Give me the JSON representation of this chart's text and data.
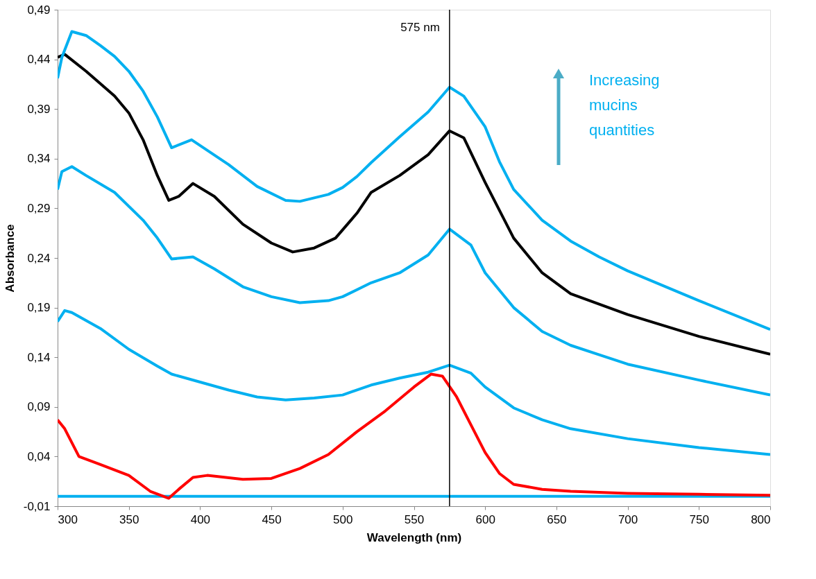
{
  "chart_data": {
    "type": "line",
    "xlabel": "Wavelength (nm)",
    "ylabel": "Absorbance",
    "xlim": [
      300,
      800
    ],
    "xticks": [
      300,
      350,
      400,
      450,
      500,
      550,
      600,
      650,
      700,
      750,
      800
    ],
    "ylim": [
      -0.01,
      0.49
    ],
    "yticks": [
      {
        "value": -0.01,
        "label": "-0,01"
      },
      {
        "value": 0.04,
        "label": "0,04"
      },
      {
        "value": 0.09,
        "label": "0,09"
      },
      {
        "value": 0.14,
        "label": "0,14"
      },
      {
        "value": 0.19,
        "label": "0,19"
      },
      {
        "value": 0.24,
        "label": "0,24"
      },
      {
        "value": 0.29,
        "label": "0,29"
      },
      {
        "value": 0.34,
        "label": "0,34"
      },
      {
        "value": 0.39,
        "label": "0,39"
      },
      {
        "value": 0.44,
        "label": "0,44"
      },
      {
        "value": 0.49,
        "label": "0,49"
      }
    ],
    "line_style": "solid",
    "ref_lines": [
      {
        "axis": "x",
        "value": 575,
        "label": "575 nm",
        "color": "#000000"
      }
    ],
    "annotations": [
      "Increasing mucins quantities"
    ],
    "series": [
      {
        "color": "#00b0f0",
        "x": [
          300,
          800
        ],
        "values": [
          0.0,
          0.0
        ]
      },
      {
        "color": "#ff0000",
        "x": [
          300,
          305,
          315,
          330,
          350,
          365,
          378,
          385,
          395,
          405,
          430,
          450,
          470,
          490,
          510,
          530,
          550,
          562,
          570,
          580,
          590,
          600,
          610,
          620,
          640,
          660,
          700,
          750,
          800
        ],
        "values": [
          0.077,
          0.068,
          0.04,
          0.032,
          0.021,
          0.005,
          -0.002,
          0.007,
          0.019,
          0.021,
          0.017,
          0.018,
          0.028,
          0.042,
          0.065,
          0.086,
          0.11,
          0.123,
          0.121,
          0.1,
          0.072,
          0.044,
          0.023,
          0.012,
          0.007,
          0.005,
          0.003,
          0.002,
          0.001
        ]
      },
      {
        "color": "#00b0f0",
        "x": [
          300,
          305,
          310,
          330,
          350,
          370,
          380,
          400,
          420,
          440,
          460,
          480,
          500,
          520,
          540,
          560,
          575,
          590,
          600,
          620,
          640,
          660,
          700,
          750,
          800
        ],
        "values": [
          0.176,
          0.187,
          0.185,
          0.169,
          0.148,
          0.131,
          0.123,
          0.115,
          0.107,
          0.1,
          0.097,
          0.099,
          0.102,
          0.112,
          0.119,
          0.125,
          0.132,
          0.124,
          0.11,
          0.089,
          0.077,
          0.068,
          0.058,
          0.049,
          0.042
        ]
      },
      {
        "color": "#00b0f0",
        "x": [
          300,
          303,
          310,
          320,
          340,
          360,
          370,
          380,
          395,
          410,
          430,
          450,
          470,
          490,
          500,
          520,
          540,
          560,
          575,
          590,
          600,
          620,
          640,
          660,
          700,
          750,
          800
        ],
        "values": [
          0.309,
          0.327,
          0.332,
          0.323,
          0.306,
          0.278,
          0.26,
          0.239,
          0.241,
          0.229,
          0.211,
          0.201,
          0.195,
          0.197,
          0.201,
          0.215,
          0.225,
          0.243,
          0.269,
          0.253,
          0.225,
          0.19,
          0.166,
          0.152,
          0.133,
          0.117,
          0.102
        ]
      },
      {
        "color": "#000000",
        "x": [
          300,
          305,
          320,
          340,
          350,
          360,
          370,
          378,
          385,
          395,
          410,
          430,
          450,
          465,
          480,
          495,
          510,
          520,
          540,
          560,
          575,
          585,
          600,
          620,
          640,
          660,
          700,
          750,
          800
        ],
        "values": [
          0.442,
          0.445,
          0.428,
          0.403,
          0.386,
          0.359,
          0.323,
          0.298,
          0.302,
          0.315,
          0.302,
          0.274,
          0.255,
          0.246,
          0.25,
          0.26,
          0.285,
          0.306,
          0.323,
          0.344,
          0.368,
          0.361,
          0.316,
          0.26,
          0.225,
          0.204,
          0.183,
          0.161,
          0.143
        ]
      },
      {
        "color": "#00b0f0",
        "x": [
          300,
          303,
          310,
          320,
          330,
          340,
          350,
          360,
          370,
          380,
          394,
          420,
          440,
          460,
          470,
          490,
          500,
          510,
          520,
          540,
          560,
          575,
          585,
          600,
          610,
          620,
          640,
          660,
          680,
          700,
          750,
          800
        ],
        "values": [
          0.421,
          0.442,
          0.468,
          0.464,
          0.454,
          0.443,
          0.428,
          0.408,
          0.382,
          0.351,
          0.359,
          0.334,
          0.312,
          0.298,
          0.297,
          0.304,
          0.311,
          0.322,
          0.336,
          0.362,
          0.387,
          0.412,
          0.403,
          0.372,
          0.337,
          0.309,
          0.278,
          0.257,
          0.241,
          0.227,
          0.197,
          0.168
        ]
      }
    ]
  }
}
